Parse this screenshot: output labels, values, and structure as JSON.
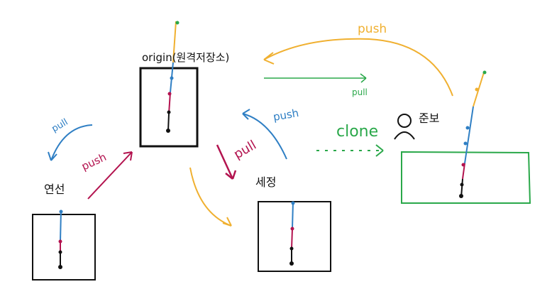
{
  "labels": {
    "origin": "origin(원격저장소)",
    "yeonseon": "연선",
    "sejeong": "세정",
    "junbo": "준보",
    "push_top": "push",
    "pull_top": "pull",
    "clone": "clone",
    "pull_left": "pull",
    "push_left": "push",
    "pull_mid": "pull",
    "push_mid": "push"
  },
  "colors": {
    "black": "#111111",
    "blue": "#2f7fc4",
    "crimson": "#b3134f",
    "orange": "#f0b030",
    "green": "#2aa84a"
  },
  "icons": [
    "person-icon"
  ]
}
